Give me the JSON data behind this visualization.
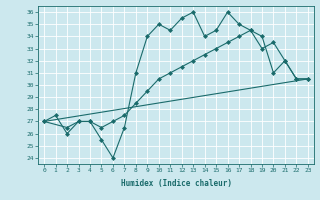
{
  "title": "",
  "xlabel": "Humidex (Indice chaleur)",
  "bg_color": "#cce8ee",
  "line_color": "#1a6b6b",
  "xlim": [
    -0.5,
    23.5
  ],
  "ylim": [
    23.5,
    36.5
  ],
  "yticks": [
    24,
    25,
    26,
    27,
    28,
    29,
    30,
    31,
    32,
    33,
    34,
    35,
    36
  ],
  "xticks": [
    0,
    1,
    2,
    3,
    4,
    5,
    6,
    7,
    8,
    9,
    10,
    11,
    12,
    13,
    14,
    15,
    16,
    17,
    18,
    19,
    20,
    21,
    22,
    23
  ],
  "line1_x": [
    0,
    1,
    2,
    3,
    4,
    5,
    6,
    7,
    8,
    9,
    10,
    11,
    12,
    13,
    14,
    15,
    16,
    17,
    18,
    19,
    20,
    21,
    22,
    23
  ],
  "line1_y": [
    27,
    27.5,
    26,
    27,
    27,
    25.5,
    24,
    26.5,
    31,
    34,
    35,
    34.5,
    35.5,
    36,
    34,
    34.5,
    36,
    35,
    34.5,
    34,
    31,
    32,
    30.5,
    30.5
  ],
  "line2_x": [
    0,
    2,
    3,
    4,
    5,
    6,
    7,
    8,
    9,
    10,
    11,
    12,
    13,
    14,
    15,
    16,
    17,
    18,
    19,
    20,
    21,
    22,
    23
  ],
  "line2_y": [
    27,
    26.5,
    27,
    27,
    26.5,
    27,
    27.5,
    28.5,
    29.5,
    30.5,
    31,
    31.5,
    32,
    32.5,
    33,
    33.5,
    34,
    34.5,
    33,
    33.5,
    32,
    30.5,
    30.5
  ],
  "line3_x": [
    0,
    23
  ],
  "line3_y": [
    27,
    30.5
  ]
}
